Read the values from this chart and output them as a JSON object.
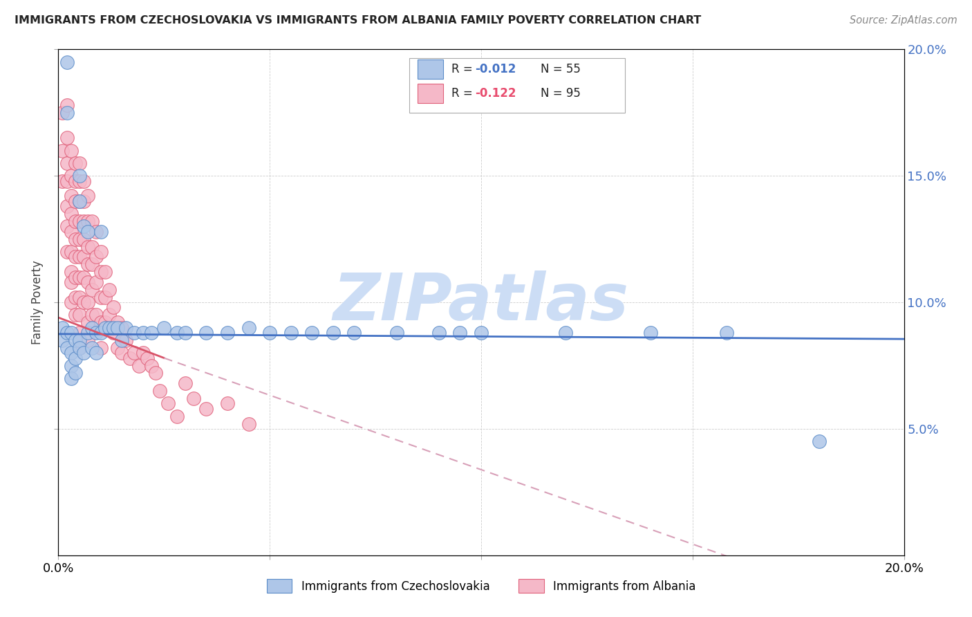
{
  "title": "IMMIGRANTS FROM CZECHOSLOVAKIA VS IMMIGRANTS FROM ALBANIA FAMILY POVERTY CORRELATION CHART",
  "source": "Source: ZipAtlas.com",
  "ylabel": "Family Poverty",
  "xlim": [
    0.0,
    0.2
  ],
  "ylim": [
    0.0,
    0.2
  ],
  "ytick_vals": [
    0.05,
    0.1,
    0.15,
    0.2
  ],
  "xtick_vals": [
    0.0,
    0.05,
    0.1,
    0.15,
    0.2
  ],
  "legend_r1": "R = ",
  "legend_v1": "-0.012",
  "legend_n1": "N = 55",
  "legend_r2": "R = ",
  "legend_v2": "-0.122",
  "legend_n2": "N = 95",
  "color_czech_fill": "#aec6e8",
  "color_czech_edge": "#5b8cc8",
  "color_albania_fill": "#f5b8c8",
  "color_albania_edge": "#e0607a",
  "color_czech_line": "#4472c4",
  "color_albania_line_solid": "#d9546a",
  "color_albania_line_dashed": "#d8a0b8",
  "watermark_color": "#ccddf5",
  "background_color": "#ffffff",
  "czech_x": [
    0.001,
    0.001,
    0.002,
    0.002,
    0.002,
    0.002,
    0.003,
    0.003,
    0.003,
    0.003,
    0.004,
    0.004,
    0.004,
    0.005,
    0.005,
    0.005,
    0.005,
    0.006,
    0.006,
    0.007,
    0.007,
    0.008,
    0.008,
    0.009,
    0.009,
    0.01,
    0.01,
    0.011,
    0.012,
    0.013,
    0.014,
    0.015,
    0.016,
    0.018,
    0.02,
    0.022,
    0.025,
    0.028,
    0.03,
    0.035,
    0.04,
    0.045,
    0.05,
    0.055,
    0.06,
    0.065,
    0.07,
    0.08,
    0.09,
    0.095,
    0.1,
    0.12,
    0.14,
    0.158,
    0.18
  ],
  "czech_y": [
    0.09,
    0.085,
    0.195,
    0.175,
    0.088,
    0.082,
    0.08,
    0.075,
    0.07,
    0.088,
    0.085,
    0.078,
    0.072,
    0.15,
    0.14,
    0.085,
    0.082,
    0.13,
    0.08,
    0.128,
    0.088,
    0.082,
    0.09,
    0.088,
    0.08,
    0.128,
    0.088,
    0.09,
    0.09,
    0.09,
    0.09,
    0.085,
    0.09,
    0.088,
    0.088,
    0.088,
    0.09,
    0.088,
    0.088,
    0.088,
    0.088,
    0.09,
    0.088,
    0.088,
    0.088,
    0.088,
    0.088,
    0.088,
    0.088,
    0.088,
    0.088,
    0.088,
    0.088,
    0.088,
    0.045
  ],
  "albania_x": [
    0.001,
    0.001,
    0.001,
    0.002,
    0.002,
    0.002,
    0.002,
    0.002,
    0.002,
    0.002,
    0.003,
    0.003,
    0.003,
    0.003,
    0.003,
    0.003,
    0.003,
    0.003,
    0.003,
    0.004,
    0.004,
    0.004,
    0.004,
    0.004,
    0.004,
    0.004,
    0.004,
    0.004,
    0.005,
    0.005,
    0.005,
    0.005,
    0.005,
    0.005,
    0.005,
    0.005,
    0.005,
    0.005,
    0.005,
    0.006,
    0.006,
    0.006,
    0.006,
    0.006,
    0.006,
    0.006,
    0.007,
    0.007,
    0.007,
    0.007,
    0.007,
    0.007,
    0.007,
    0.007,
    0.008,
    0.008,
    0.008,
    0.008,
    0.008,
    0.009,
    0.009,
    0.009,
    0.009,
    0.01,
    0.01,
    0.01,
    0.01,
    0.01,
    0.011,
    0.011,
    0.011,
    0.012,
    0.012,
    0.013,
    0.013,
    0.014,
    0.014,
    0.015,
    0.015,
    0.016,
    0.017,
    0.018,
    0.019,
    0.02,
    0.021,
    0.022,
    0.023,
    0.024,
    0.026,
    0.028,
    0.03,
    0.032,
    0.035,
    0.04,
    0.045
  ],
  "albania_y": [
    0.175,
    0.16,
    0.148,
    0.178,
    0.165,
    0.155,
    0.148,
    0.138,
    0.13,
    0.12,
    0.16,
    0.15,
    0.142,
    0.135,
    0.128,
    0.12,
    0.112,
    0.108,
    0.1,
    0.155,
    0.148,
    0.14,
    0.132,
    0.125,
    0.118,
    0.11,
    0.102,
    0.095,
    0.155,
    0.148,
    0.14,
    0.132,
    0.125,
    0.118,
    0.11,
    0.102,
    0.095,
    0.088,
    0.082,
    0.148,
    0.14,
    0.132,
    0.125,
    0.118,
    0.11,
    0.1,
    0.142,
    0.132,
    0.122,
    0.115,
    0.108,
    0.1,
    0.092,
    0.085,
    0.132,
    0.122,
    0.115,
    0.105,
    0.095,
    0.128,
    0.118,
    0.108,
    0.095,
    0.12,
    0.112,
    0.102,
    0.092,
    0.082,
    0.112,
    0.102,
    0.092,
    0.105,
    0.095,
    0.098,
    0.088,
    0.092,
    0.082,
    0.09,
    0.08,
    0.085,
    0.078,
    0.08,
    0.075,
    0.08,
    0.078,
    0.075,
    0.072,
    0.065,
    0.06,
    0.055,
    0.068,
    0.062,
    0.058,
    0.06,
    0.052
  ]
}
